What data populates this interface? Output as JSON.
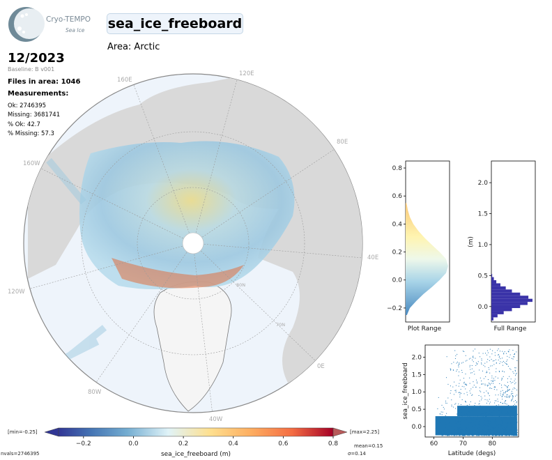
{
  "logo": {
    "name": "Cryo-TEMPO",
    "sub": "Sea Ice"
  },
  "title": "sea_ice_freeboard",
  "area": "Area: Arctic",
  "date": "12/2023",
  "baseline": "Baseline: B v001",
  "files": "Files in area: 1046",
  "measurements": {
    "heading": "Measurements:",
    "ok": "Ok: 2746395",
    "missing": "Missing: 3681741",
    "pct_ok": "% Ok: 42.7",
    "pct_missing": "% Missing: 57.3"
  },
  "map": {
    "lon_labels": [
      "160E",
      "120E",
      "80E",
      "40E",
      "0E",
      "40W",
      "80W",
      "120W",
      "160W"
    ],
    "lat_labels": [
      "70N",
      "80N"
    ]
  },
  "colorbar": {
    "xlabel": "sea_ice_freeboard (m)",
    "min_label": "[min=-0.25]",
    "max_label": "[max=2.25]",
    "ticks": [
      "−0.2",
      "0.0",
      "0.2",
      "0.4",
      "0.6",
      "0.8"
    ],
    "nvals": "nvals=2746395",
    "mean": "mean=0.15",
    "sigma": "σ=0.14"
  },
  "colors": {
    "scatter": "#1f77b4",
    "hist_full": "#3a33a8",
    "title_bg": "#eef4fb",
    "ocean": "#eef4fb",
    "land": "#d9d9d9"
  },
  "chart_data": [
    {
      "type": "area",
      "xlabel": "Plot Range",
      "ylim": [
        -0.3,
        0.85
      ],
      "yticks": [
        "−0.2",
        "0.0",
        "0.2",
        "0.4",
        "0.6",
        "0.8"
      ],
      "bins": [
        -0.25,
        -0.2,
        -0.15,
        -0.1,
        -0.05,
        0.0,
        0.05,
        0.1,
        0.15,
        0.2,
        0.25,
        0.3,
        0.35,
        0.4,
        0.45,
        0.5,
        0.55
      ],
      "density": [
        0.03,
        0.1,
        0.25,
        0.42,
        0.62,
        0.8,
        0.95,
        1.0,
        0.95,
        0.8,
        0.62,
        0.45,
        0.3,
        0.18,
        0.1,
        0.05,
        0.02
      ]
    },
    {
      "type": "bar",
      "xlabel": "Full Range",
      "ylabel": "(m)",
      "ylim": [
        -0.25,
        2.35
      ],
      "yticks": [
        "0.0",
        "0.5",
        "1.0",
        "1.5",
        "2.0"
      ],
      "bins": [
        -0.2,
        -0.15,
        -0.1,
        -0.05,
        0.0,
        0.05,
        0.1,
        0.15,
        0.2,
        0.25,
        0.3,
        0.35,
        0.4,
        0.45,
        0.5
      ],
      "counts": [
        0.05,
        0.15,
        0.3,
        0.5,
        0.7,
        0.88,
        1.0,
        0.9,
        0.7,
        0.5,
        0.35,
        0.22,
        0.12,
        0.06,
        0.02
      ]
    },
    {
      "type": "scatter",
      "xlabel": "Latitude (degs)",
      "ylabel": "sea_ice_freeboard",
      "xlim": [
        57,
        89
      ],
      "ylim": [
        -0.3,
        2.35
      ],
      "xticks": [
        "60",
        "70",
        "80"
      ],
      "yticks": [
        "0.0",
        "0.5",
        "1.0",
        "1.5",
        "2.0"
      ],
      "x_range": [
        60.5,
        88.5
      ],
      "y_range": [
        -0.25,
        2.25
      ]
    }
  ]
}
